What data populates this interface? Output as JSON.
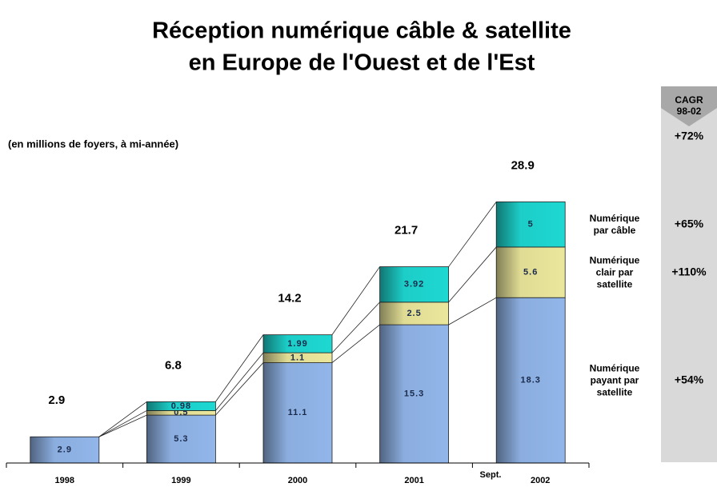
{
  "chart_data": {
    "type": "stacked_bar",
    "title": [
      "Réception numérique câble & satellite",
      "en Europe de l'Ouest et de l'Est"
    ],
    "subtitle": "(en millions de foyers, à mi-année)",
    "categories": [
      "1998",
      "1999",
      "2000",
      "2001",
      "2002"
    ],
    "category_note": "Sept.",
    "ylim": [
      0,
      30
    ],
    "series": [
      {
        "name": "Numérique payant par satellite",
        "color": "#92b6ea",
        "values": [
          2.9,
          5.3,
          11.1,
          15.3,
          18.3
        ],
        "cagr": "+54%"
      },
      {
        "name": "Numérique clair par satellite",
        "color": "#ebe79c",
        "values": [
          null,
          0.5,
          1.1,
          2.5,
          5.6
        ],
        "cagr": "+110%"
      },
      {
        "name": "Numérique par câble",
        "color": "#1ed8d2",
        "values": [
          null,
          0.98,
          1.99,
          3.92,
          5
        ],
        "cagr": "+65%"
      }
    ],
    "totals": [
      2.9,
      6.8,
      14.2,
      21.7,
      28.9
    ],
    "cagr_title": "CAGR 98-02",
    "cagr_total": "+72%"
  }
}
